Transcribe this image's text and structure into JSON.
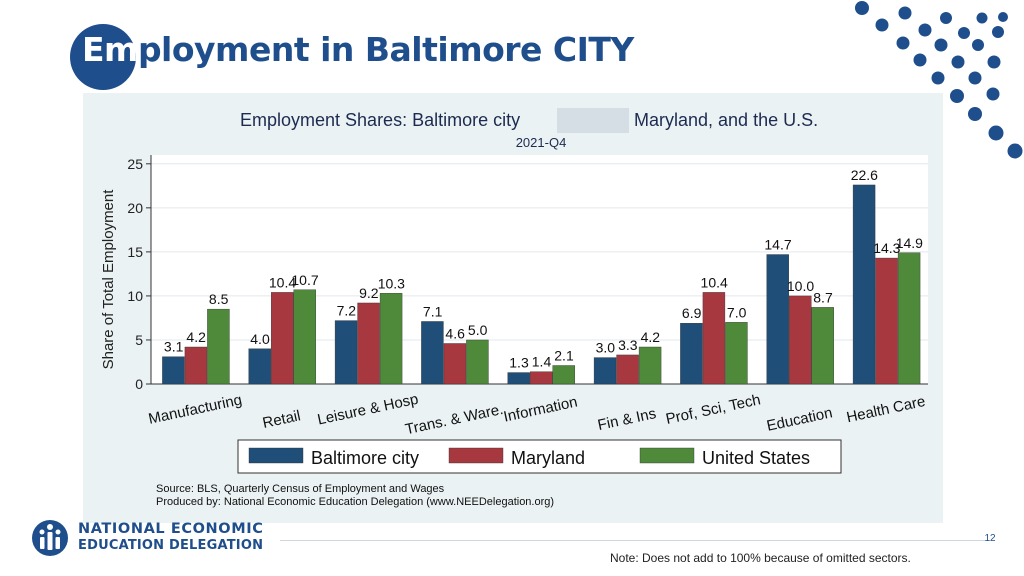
{
  "slide": {
    "title_em": "Em",
    "title_rest": "ployment in Baltimore CITY",
    "page_number": "12",
    "footnote": "Note: Does not add to 100% because of omitted sectors.",
    "logo_line1": "NATIONAL ECONOMIC",
    "logo_line2": "EDUCATION DELEGATION",
    "accent_color": "#1f4e8c"
  },
  "chart_data": {
    "type": "bar",
    "title_left": "Employment Shares: Baltimore city",
    "title_right": "Maryland, and the U.S.",
    "subtitle": "2021-Q4",
    "ylabel": "Share of Total Employment",
    "xlabel": "",
    "ylim": [
      0,
      26
    ],
    "yticks": [
      0,
      5,
      10,
      15,
      20,
      25
    ],
    "grid": true,
    "legend_position": "bottom",
    "categories": [
      "Manufacturing",
      "Retail",
      "Leisure & Hosp",
      "Trans. & Ware.",
      "Information",
      "Fin & Ins",
      "Prof, Sci, Tech",
      "Education",
      "Health Care"
    ],
    "series": [
      {
        "name": "Baltimore city",
        "color": "#1f4e79",
        "values": [
          3.1,
          4.0,
          7.2,
          7.1,
          1.3,
          3.0,
          6.9,
          14.7,
          22.6
        ]
      },
      {
        "name": "Maryland",
        "color": "#a8383f",
        "values": [
          4.2,
          10.4,
          9.2,
          4.6,
          1.4,
          3.3,
          10.4,
          10.0,
          14.3
        ]
      },
      {
        "name": "United States",
        "color": "#4f8a3a",
        "values": [
          8.5,
          10.7,
          10.3,
          5.0,
          2.1,
          4.2,
          7.0,
          8.7,
          14.9
        ]
      }
    ],
    "source_line1": "Source: BLS, Quarterly Census of Employment and Wages",
    "source_line2": "Produced by: National Economic Education Delegation (www.NEEDelegation.org)"
  }
}
